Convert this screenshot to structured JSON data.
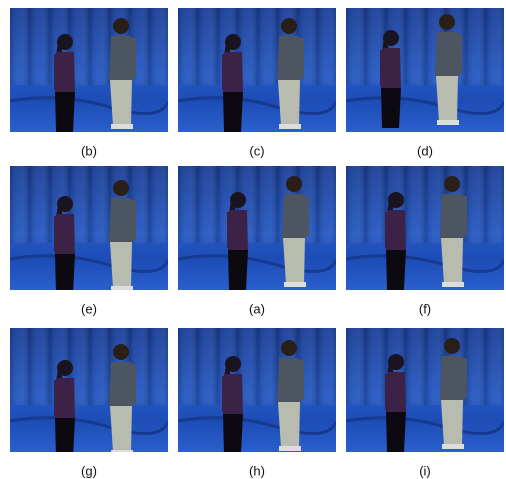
{
  "panels": [
    {
      "label": "(b)"
    },
    {
      "label": "(c)"
    },
    {
      "label": "(d)"
    },
    {
      "label": "(e)"
    },
    {
      "label": "(a)"
    },
    {
      "label": "(f)"
    },
    {
      "label": "(g)"
    },
    {
      "label": "(h)"
    },
    {
      "label": "(i)"
    }
  ]
}
